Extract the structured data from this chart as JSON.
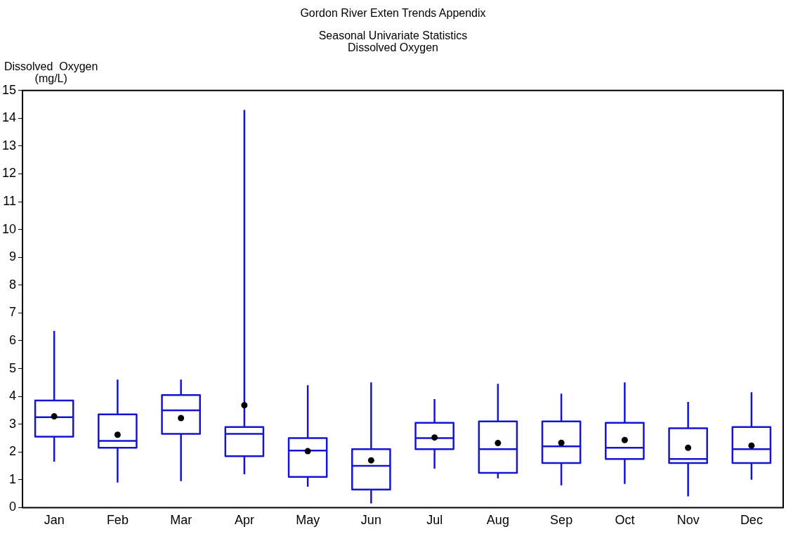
{
  "chart_data": {
    "type": "box",
    "title": "Gordon River Exten Trends Appendix",
    "subtitle": "Seasonal Univariate Statistics\nDissolved Oxygen",
    "ylabel": "Dissolved  Oxygen\n(mg/L)",
    "categories": [
      "Jan",
      "Feb",
      "Mar",
      "Apr",
      "May",
      "Jun",
      "Jul",
      "Aug",
      "Sep",
      "Oct",
      "Nov",
      "Dec"
    ],
    "color": "#1414d2",
    "boxes": [
      {
        "low": 1.65,
        "q1": 2.55,
        "median": 3.25,
        "q3": 3.85,
        "high": 6.35,
        "mean": 3.28
      },
      {
        "low": 0.9,
        "q1": 2.15,
        "median": 2.4,
        "q3": 3.35,
        "high": 4.6,
        "mean": 2.62
      },
      {
        "low": 0.95,
        "q1": 2.65,
        "median": 3.5,
        "q3": 4.05,
        "high": 4.6,
        "mean": 3.22
      },
      {
        "low": 1.2,
        "q1": 1.85,
        "median": 2.65,
        "q3": 2.9,
        "high": 14.3,
        "mean": 3.68
      },
      {
        "low": 0.75,
        "q1": 1.1,
        "median": 2.05,
        "q3": 2.5,
        "high": 4.4,
        "mean": 2.03
      },
      {
        "low": 0.15,
        "q1": 0.65,
        "median": 1.5,
        "q3": 2.1,
        "high": 4.5,
        "mean": 1.7
      },
      {
        "low": 1.4,
        "q1": 2.1,
        "median": 2.5,
        "q3": 3.05,
        "high": 3.9,
        "mean": 2.52
      },
      {
        "low": 1.05,
        "q1": 1.25,
        "median": 2.1,
        "q3": 3.1,
        "high": 4.45,
        "mean": 2.32
      },
      {
        "low": 0.8,
        "q1": 1.6,
        "median": 2.2,
        "q3": 3.1,
        "high": 4.1,
        "mean": 2.33
      },
      {
        "low": 0.85,
        "q1": 1.75,
        "median": 2.15,
        "q3": 3.05,
        "high": 4.5,
        "mean": 2.43
      },
      {
        "low": 0.4,
        "q1": 1.6,
        "median": 1.75,
        "q3": 2.85,
        "high": 3.8,
        "mean": 2.15
      },
      {
        "low": 1.0,
        "q1": 1.6,
        "median": 2.1,
        "q3": 2.9,
        "high": 4.15,
        "mean": 2.23
      }
    ],
    "ylim": [
      0,
      15
    ],
    "yticks": [
      0,
      1,
      2,
      3,
      4,
      5,
      6,
      7,
      8,
      9,
      10,
      11,
      12,
      13,
      14,
      15
    ],
    "grid": false,
    "legend": false
  }
}
